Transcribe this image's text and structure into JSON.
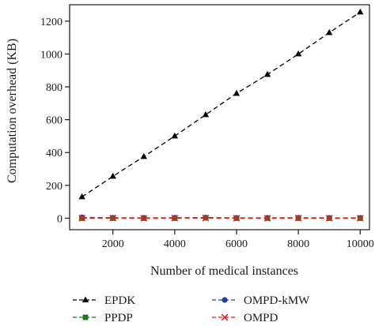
{
  "chart_data": {
    "type": "line",
    "title": "",
    "xlabel": "Number of medical instances",
    "ylabel": "Computation overhead (KB)",
    "xlim": [
      600,
      10300
    ],
    "ylim": [
      -70,
      1300
    ],
    "xticks": [
      2000,
      4000,
      6000,
      8000,
      10000
    ],
    "yticks": [
      0,
      200,
      400,
      600,
      800,
      1000,
      1200
    ],
    "grid": false,
    "legend_position": "bottom",
    "x": [
      1000,
      2000,
      3000,
      4000,
      5000,
      6000,
      7000,
      8000,
      9000,
      10000
    ],
    "series": [
      {
        "name": "EPDK",
        "color": "#000000",
        "marker": "triangle",
        "values": [
          130,
          255,
          375,
          500,
          630,
          760,
          875,
          1000,
          1130,
          1255
        ]
      },
      {
        "name": "OMPD-kMW",
        "color": "#1f3fa8",
        "marker": "circle",
        "values": [
          5,
          3,
          2,
          3,
          4,
          2,
          2,
          3,
          2,
          2
        ]
      },
      {
        "name": "PPDP",
        "color": "#1a7a1a",
        "marker": "square",
        "values": [
          0,
          0,
          0,
          0,
          2,
          0,
          0,
          0,
          0,
          0
        ]
      },
      {
        "name": "OMPD",
        "color": "#e02020",
        "marker": "x",
        "values": [
          1,
          1,
          0,
          1,
          1,
          0,
          0,
          1,
          0,
          0
        ]
      }
    ]
  }
}
